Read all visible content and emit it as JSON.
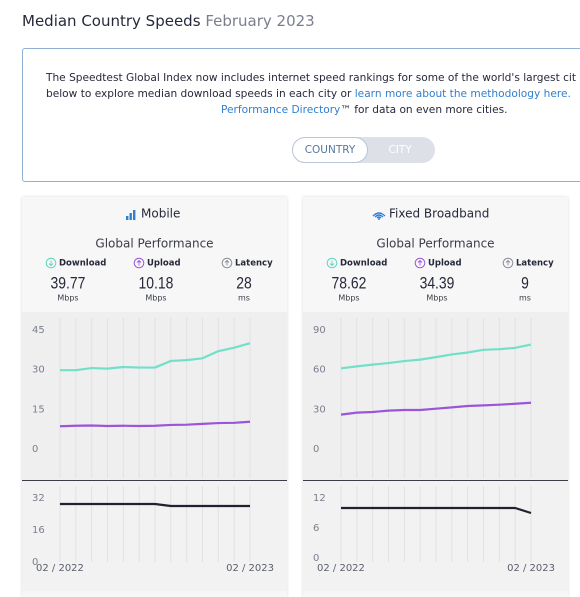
{
  "header": {
    "title": "Median Country Speeds",
    "subtitle": "February 2023"
  },
  "info": {
    "line1": "The Speedtest Global Index now includes internet speed rankings for some of the world's largest cit",
    "line2": "below to explore median download speeds in each city or ",
    "line2_link": "learn more about the methodology here.",
    "line3_link": "Performance Directory",
    "line3": "™ for data on even more cities."
  },
  "toggle": {
    "options": [
      "COUNTRY",
      "CITY"
    ]
  },
  "panels": [
    {
      "title": "Mobile",
      "heading": "Global Performance",
      "metrics": [
        {
          "label": "Download",
          "value": 39.77,
          "unit": "Mbps"
        },
        {
          "label": "Upload",
          "value": 10.18,
          "unit": "Mbps"
        },
        {
          "label": "Latency",
          "value": 28,
          "unit": "ms"
        }
      ],
      "categories": [
        "02 / 2022",
        null,
        null,
        null,
        null,
        null,
        null,
        null,
        null,
        null,
        null,
        null,
        "02 / 2023"
      ],
      "speed_chart": {
        "type": "line",
        "ylim": [
          0,
          45
        ],
        "yticks": [
          0,
          15,
          30,
          45
        ],
        "series": [
          {
            "name": "Download",
            "color": "#72e0c9",
            "values": [
              29.8,
              29.8,
              30.6,
              30.4,
              31,
              30.8,
              30.8,
              33.3,
              33.6,
              34.3,
              37,
              38.3,
              40
            ]
          },
          {
            "name": "Upload",
            "color": "#9a55d8",
            "values": [
              8.6,
              8.8,
              8.9,
              8.7,
              8.8,
              8.7,
              8.8,
              9.1,
              9.2,
              9.5,
              9.8,
              9.9,
              10.3
            ]
          }
        ]
      },
      "latency_chart": {
        "type": "line",
        "ylim": [
          0,
          32
        ],
        "yticks": [
          0,
          16,
          32
        ],
        "series": [
          {
            "name": "Latency",
            "color": "#20232f",
            "values": [
              29,
              29,
              29,
              29,
              29,
              29,
              29,
              28,
              28,
              28,
              28,
              28,
              28
            ]
          }
        ]
      }
    },
    {
      "title": "Fixed Broadband",
      "heading": "Global Performance",
      "metrics": [
        {
          "label": "Download",
          "value": 78.62,
          "unit": "Mbps"
        },
        {
          "label": "Upload",
          "value": 34.39,
          "unit": "Mbps"
        },
        {
          "label": "Latency",
          "value": 9,
          "unit": "ms"
        }
      ],
      "categories": [
        "02 / 2022",
        null,
        null,
        null,
        null,
        null,
        null,
        null,
        null,
        null,
        null,
        null,
        "02 / 2023"
      ],
      "speed_chart": {
        "type": "line",
        "ylim": [
          0,
          90
        ],
        "yticks": [
          0,
          30,
          60,
          90
        ],
        "series": [
          {
            "name": "Download",
            "color": "#72e0c9",
            "values": [
              61,
              62.5,
              63.8,
              65,
              66.5,
              67.6,
              69.5,
              71.5,
              73,
              75,
              75.5,
              76.5,
              79
            ]
          },
          {
            "name": "Upload",
            "color": "#9a55d8",
            "values": [
              26,
              27.5,
              28,
              29,
              29.5,
              29.5,
              30.5,
              31.5,
              32.5,
              33,
              33.5,
              34.2,
              35
            ]
          }
        ]
      },
      "latency_chart": {
        "type": "line",
        "ylim": [
          0,
          12
        ],
        "yticks": [
          0,
          6,
          12
        ],
        "series": [
          {
            "name": "Latency",
            "color": "#20232f",
            "values": [
              10,
              10,
              10,
              10,
              10,
              10,
              10,
              10,
              10,
              10,
              10,
              10,
              9
            ]
          }
        ]
      }
    }
  ]
}
